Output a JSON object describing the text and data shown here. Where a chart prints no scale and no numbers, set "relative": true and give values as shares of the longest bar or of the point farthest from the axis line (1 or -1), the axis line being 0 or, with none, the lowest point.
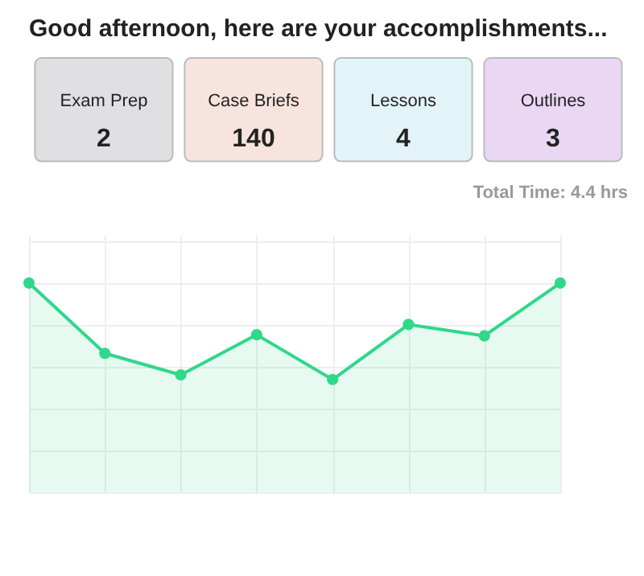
{
  "chart_data": [
    {
      "type": "other",
      "title": "Good afternoon, here are your accomplishments...",
      "categories": [
        "Exam Prep",
        "Case Briefs",
        "Lessons",
        "Outlines"
      ],
      "values": [
        2,
        140,
        4,
        3
      ],
      "colors": [
        "#e0dfe2",
        "#f8e4de",
        "#e3f4f9",
        "#ead7f4"
      ],
      "data_labels": true,
      "annotations": [
        "Total Time: 4.4 hrs"
      ]
    },
    {
      "type": "area",
      "relative": true,
      "categories": [
        null,
        null,
        null,
        null,
        null,
        null,
        null,
        null
      ],
      "grid": true,
      "marker": "circle",
      "series": [
        {
          "color": "#2fd88a",
          "values": [
            1,
            0.664,
            0.561,
            0.753,
            0.539,
            0.802,
            0.748,
            1
          ]
        }
      ]
    }
  ]
}
